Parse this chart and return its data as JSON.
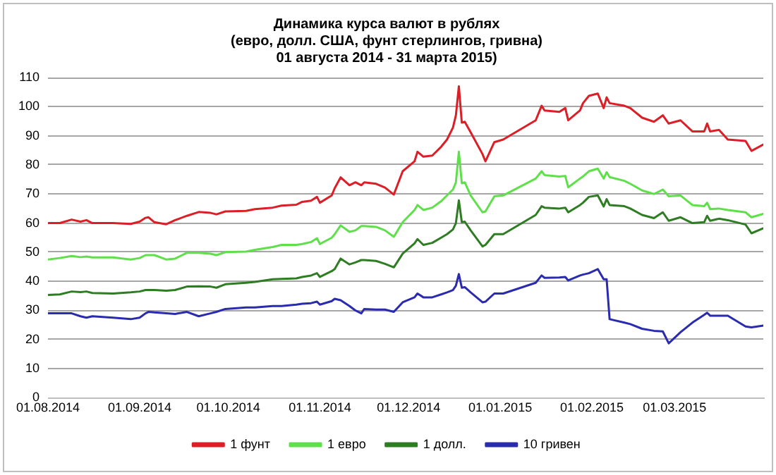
{
  "chart_data": {
    "type": "line",
    "title": "Динамика курса валют в рублях\n(евро, долл. США, фунт стерлингов, гривна)\n01 августа 2014 - 31 марта 2015)",
    "x": [
      "2014-08-01",
      "2014-08-05",
      "2014-08-09",
      "2014-08-12",
      "2014-08-14",
      "2014-08-16",
      "2014-08-23",
      "2014-08-29",
      "2014-09-01",
      "2014-09-03",
      "2014-09-04",
      "2014-09-06",
      "2014-09-10",
      "2014-09-13",
      "2014-09-17",
      "2014-09-21",
      "2014-09-25",
      "2014-09-27",
      "2014-09-30",
      "2014-10-07",
      "2014-10-10",
      "2014-10-16",
      "2014-10-19",
      "2014-10-24",
      "2014-10-26",
      "2014-10-29",
      "2014-10-31",
      "2014-11-01",
      "2014-11-05",
      "2014-11-06",
      "2014-11-08",
      "2014-11-11",
      "2014-11-13",
      "2014-11-15",
      "2014-11-16",
      "2014-11-20",
      "2014-11-23",
      "2014-11-26",
      "2014-11-29",
      "2014-12-03",
      "2014-12-04",
      "2014-12-06",
      "2014-12-09",
      "2014-12-12",
      "2014-12-14",
      "2014-12-16",
      "2014-12-17",
      "2014-12-18",
      "2014-12-19",
      "2014-12-20",
      "2014-12-22",
      "2014-12-26",
      "2014-12-27",
      "2014-12-30",
      "2015-01-02",
      "2015-01-13",
      "2015-01-15",
      "2015-01-16",
      "2015-01-21",
      "2015-01-23",
      "2015-01-24",
      "2015-01-28",
      "2015-01-29",
      "2015-01-31",
      "2015-02-03",
      "2015-02-05",
      "2015-02-06",
      "2015-02-07",
      "2015-02-12",
      "2015-02-14",
      "2015-02-18",
      "2015-02-22",
      "2015-02-25",
      "2015-02-27",
      "2015-03-03",
      "2015-03-07",
      "2015-03-11",
      "2015-03-12",
      "2015-03-13",
      "2015-03-16",
      "2015-03-19",
      "2015-03-25",
      "2015-03-27",
      "2015-03-31"
    ],
    "series": [
      {
        "name": "1 фунт",
        "color": "#dc1f26",
        "values": [
          60,
          60,
          61.2,
          60.5,
          61,
          60,
          60,
          59.7,
          60.5,
          61.8,
          62,
          60.3,
          59.6,
          61,
          62.5,
          63.8,
          63.5,
          63,
          64,
          64.2,
          64.8,
          65.3,
          66,
          66.3,
          67.3,
          67.7,
          69,
          67,
          69.5,
          72,
          75.7,
          73,
          74,
          73,
          74,
          73.5,
          72.2,
          69.8,
          77.8,
          81.2,
          84.5,
          82.8,
          83.2,
          86.2,
          88.7,
          92.8,
          97,
          107,
          94.5,
          94.8,
          91.2,
          83.7,
          81.2,
          87.8,
          88.7,
          95.3,
          100.3,
          98.7,
          98.2,
          99.5,
          95.3,
          98.7,
          101.2,
          103.7,
          104.5,
          99.5,
          103.2,
          101.2,
          100.3,
          99.5,
          96.2,
          94.8,
          97,
          94.2,
          95.3,
          91.5,
          91.5,
          94.2,
          91.5,
          92,
          88.7,
          88.2,
          84.8,
          87
        ]
      },
      {
        "name": "1 евро",
        "color": "#5fe04a",
        "values": [
          47.5,
          48,
          48.7,
          48.3,
          48.5,
          48.2,
          48.2,
          47.5,
          48,
          49,
          49,
          49,
          47.5,
          47.8,
          49.8,
          49.8,
          49.5,
          49,
          50,
          50.2,
          50.8,
          51.8,
          52.5,
          52.5,
          52.8,
          53.5,
          54.8,
          52.8,
          55,
          56.2,
          59.2,
          57,
          57.5,
          59,
          59,
          58.7,
          57.5,
          55.3,
          60.3,
          64.5,
          66.2,
          64.5,
          65.3,
          67.5,
          69.5,
          71.5,
          74,
          84.5,
          73.7,
          74,
          69.5,
          63.7,
          64,
          69.2,
          69.5,
          75.3,
          77.8,
          76.5,
          76,
          76.2,
          72.3,
          75.3,
          76,
          77.8,
          78.7,
          75.3,
          77.5,
          75.8,
          74.5,
          73.5,
          71.2,
          70,
          71.5,
          69.2,
          69.5,
          66.2,
          65.8,
          67,
          64.8,
          65,
          64.5,
          63.7,
          62,
          63.2
        ]
      },
      {
        "name": "1 долл.",
        "color": "#2e7d23",
        "values": [
          35.3,
          35.5,
          36.5,
          36.3,
          36.5,
          36,
          35.8,
          36.2,
          36.5,
          37,
          37,
          37,
          36.8,
          37,
          38.2,
          38.3,
          38.2,
          37.8,
          39,
          39.5,
          39.8,
          40.7,
          40.8,
          41,
          41.5,
          42,
          42.8,
          41.5,
          43.5,
          44.2,
          47.8,
          45.8,
          46.5,
          47.3,
          47.3,
          47,
          46,
          44.8,
          49.5,
          53,
          54.5,
          52.5,
          53.2,
          55,
          56.2,
          57.8,
          60,
          67.8,
          60.3,
          60.5,
          57.5,
          52,
          52.5,
          56.2,
          56.2,
          62.8,
          65.8,
          65.3,
          65,
          65.3,
          63.7,
          66.2,
          67,
          69,
          69.5,
          65.7,
          68.2,
          66.2,
          65.8,
          65,
          62.8,
          61.7,
          63.7,
          60.8,
          62,
          60,
          60.3,
          62.5,
          60.8,
          61.5,
          61,
          59.5,
          56.5,
          58.2
        ]
      },
      {
        "name": "10 гривен",
        "color": "#2b2bb0",
        "values": [
          29,
          29,
          29,
          28,
          27.5,
          28,
          27.5,
          27,
          27.5,
          29,
          29.5,
          29.3,
          29,
          28.8,
          29.5,
          28,
          29,
          29.5,
          30.5,
          31,
          31,
          31.5,
          31.5,
          32,
          32.3,
          32.5,
          33,
          32,
          33.2,
          34,
          33.5,
          31.5,
          30,
          29,
          30.5,
          30.3,
          30.3,
          29.5,
          32.8,
          34.5,
          35.8,
          34.5,
          34.5,
          35.5,
          36.2,
          37,
          38.5,
          42.5,
          37.8,
          38,
          36.2,
          32.8,
          33,
          35.8,
          35.8,
          39.5,
          42,
          41.2,
          41.3,
          41.5,
          40.3,
          42,
          42.3,
          42.8,
          44.2,
          40.7,
          40.7,
          27,
          25.8,
          25.3,
          23.7,
          23,
          22.8,
          18.7,
          22.5,
          25.8,
          28.5,
          29.2,
          28.2,
          28.2,
          28.2,
          24.5,
          24.2,
          24.8
        ]
      }
    ],
    "xlim": [
      "2014-08-01",
      "2015-03-31"
    ],
    "xticks": [
      {
        "value": "2014-08-01",
        "label": "01.08.2014"
      },
      {
        "value": "2014-09-01",
        "label": "01.09.2014"
      },
      {
        "value": "2014-10-01",
        "label": "01.10.2014"
      },
      {
        "value": "2014-11-01",
        "label": "01.11.2014"
      },
      {
        "value": "2014-12-01",
        "label": "01.12.2014"
      },
      {
        "value": "2015-01-01",
        "label": "01.01.2015"
      },
      {
        "value": "2015-02-01",
        "label": "01.02.2015"
      },
      {
        "value": "2015-03-01",
        "label": "01.03.2015"
      }
    ],
    "ylim": [
      0,
      110
    ],
    "yticks": [
      0,
      10,
      20,
      30,
      40,
      50,
      60,
      70,
      80,
      90,
      100,
      110
    ],
    "grid": "y",
    "legend": "bottom",
    "marker": "none",
    "line_style": "solid"
  }
}
